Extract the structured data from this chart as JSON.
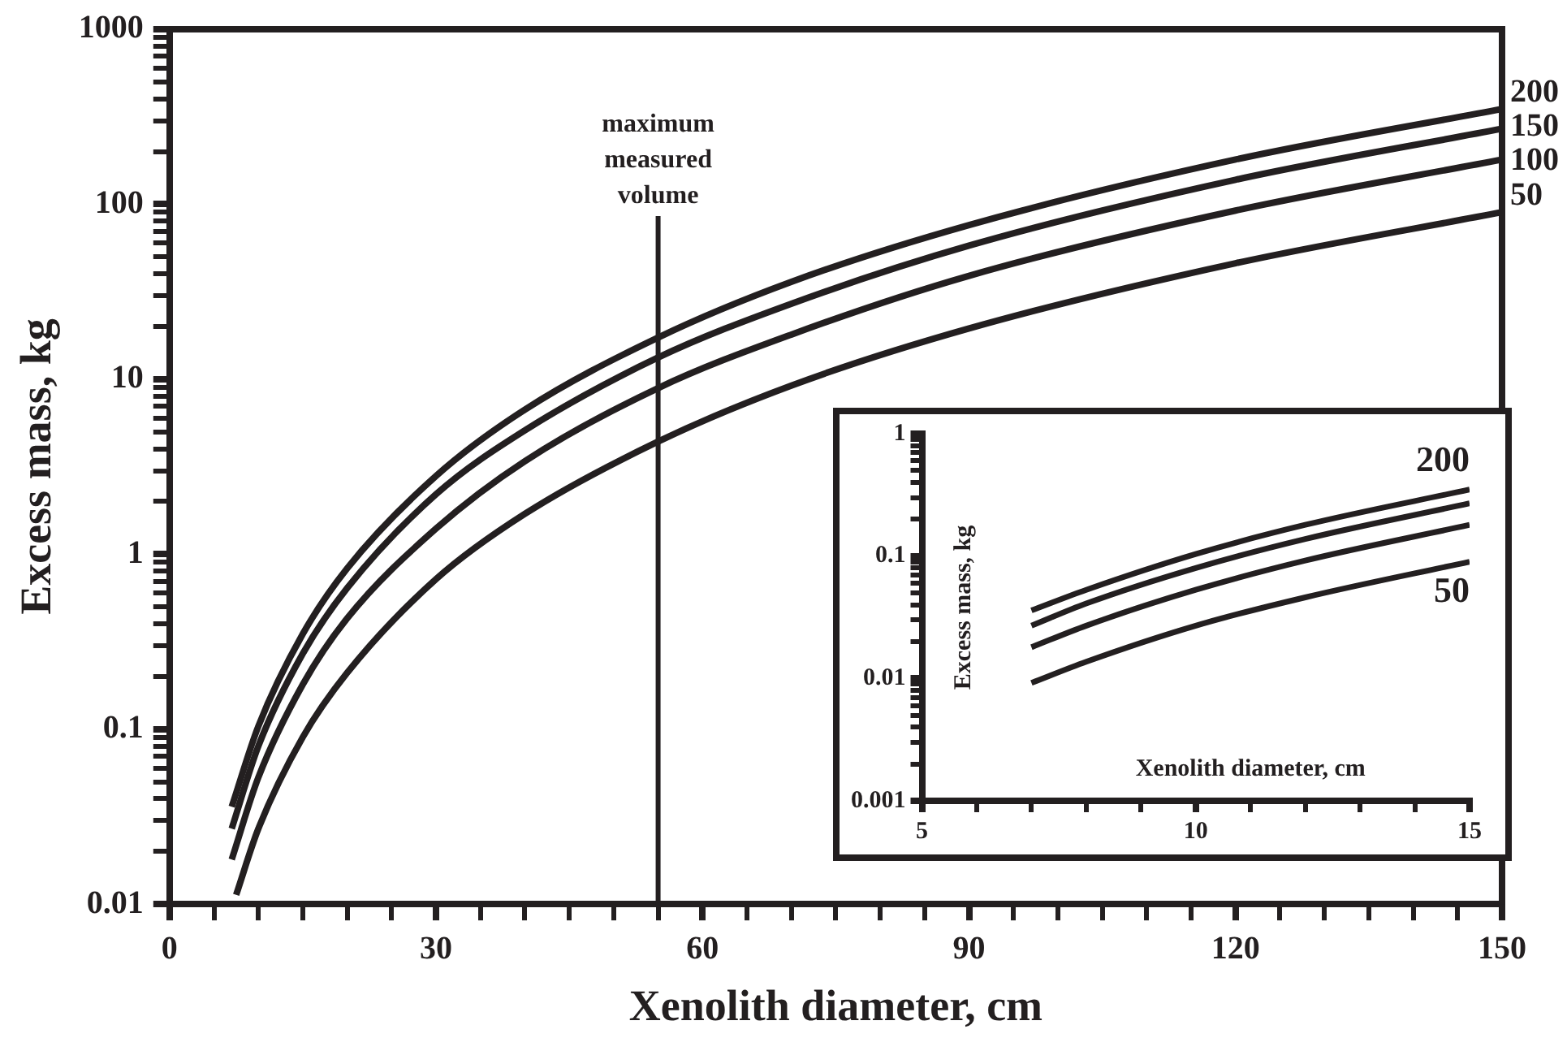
{
  "chart_data": [
    {
      "type": "line",
      "xlabel": "Xenolith diameter, cm",
      "ylabel": "Excess mass, kg",
      "log": "y",
      "grid": false,
      "legend": false,
      "marker": "none",
      "line_style": "solid",
      "xlim": [
        0,
        150
      ],
      "xticks": [
        0,
        {
          "value": 5,
          "label": null
        },
        {
          "value": 10,
          "label": null
        },
        {
          "value": 15,
          "label": null
        },
        {
          "value": 20,
          "label": null
        },
        {
          "value": 25,
          "label": null
        },
        30,
        {
          "value": 35,
          "label": null
        },
        {
          "value": 40,
          "label": null
        },
        {
          "value": 45,
          "label": null
        },
        {
          "value": 50,
          "label": null
        },
        {
          "value": 55,
          "label": null
        },
        60,
        {
          "value": 65,
          "label": null
        },
        {
          "value": 70,
          "label": null
        },
        {
          "value": 75,
          "label": null
        },
        {
          "value": 80,
          "label": null
        },
        {
          "value": 85,
          "label": null
        },
        90,
        {
          "value": 95,
          "label": null
        },
        {
          "value": 100,
          "label": null
        },
        {
          "value": 105,
          "label": null
        },
        {
          "value": 110,
          "label": null
        },
        {
          "value": 115,
          "label": null
        },
        120,
        {
          "value": 125,
          "label": null
        },
        {
          "value": 130,
          "label": null
        },
        {
          "value": 135,
          "label": null
        },
        {
          "value": 140,
          "label": null
        },
        {
          "value": 145,
          "label": null
        },
        150
      ],
      "ylim": [
        0.01,
        1000
      ],
      "yticks": [
        0.01,
        {
          "value": 0.02,
          "label": null
        },
        {
          "value": 0.03,
          "label": null
        },
        {
          "value": 0.04,
          "label": null
        },
        {
          "value": 0.05,
          "label": null
        },
        {
          "value": 0.06,
          "label": null
        },
        {
          "value": 0.07,
          "label": null
        },
        {
          "value": 0.08,
          "label": null
        },
        {
          "value": 0.09,
          "label": null
        },
        0.1,
        {
          "value": 0.2,
          "label": null
        },
        {
          "value": 0.3,
          "label": null
        },
        {
          "value": 0.4,
          "label": null
        },
        {
          "value": 0.5,
          "label": null
        },
        {
          "value": 0.6,
          "label": null
        },
        {
          "value": 0.7,
          "label": null
        },
        {
          "value": 0.8,
          "label": null
        },
        {
          "value": 0.9,
          "label": null
        },
        1,
        {
          "value": 2,
          "label": null
        },
        {
          "value": 3,
          "label": null
        },
        {
          "value": 4,
          "label": null
        },
        {
          "value": 5,
          "label": null
        },
        {
          "value": 6,
          "label": null
        },
        {
          "value": 7,
          "label": null
        },
        {
          "value": 8,
          "label": null
        },
        {
          "value": 9,
          "label": null
        },
        10,
        {
          "value": 20,
          "label": null
        },
        {
          "value": 30,
          "label": null
        },
        {
          "value": 40,
          "label": null
        },
        {
          "value": 50,
          "label": null
        },
        {
          "value": 60,
          "label": null
        },
        {
          "value": 70,
          "label": null
        },
        {
          "value": 80,
          "label": null
        },
        {
          "value": 90,
          "label": null
        },
        100,
        {
          "value": 200,
          "label": null
        },
        {
          "value": 300,
          "label": null
        },
        {
          "value": 400,
          "label": null
        },
        {
          "value": 500,
          "label": null
        },
        {
          "value": 600,
          "label": null
        },
        {
          "value": 700,
          "label": null
        },
        {
          "value": 800,
          "label": null
        },
        {
          "value": 900,
          "label": null
        },
        1000
      ],
      "ref_lines": [
        {
          "axis": "x",
          "value": 55,
          "label": "maximum measured volume",
          "color": "#231f20"
        }
      ],
      "series": [
        {
          "name": "200",
          "color": "#231f20",
          "x": [
            7,
            10,
            15,
            20,
            30,
            40,
            55,
            70,
            90,
            120,
            150
          ],
          "values": [
            0.036,
            0.104,
            0.35,
            0.83,
            2.8,
            6.7,
            17.3,
            36,
            76,
            180,
            350
          ]
        },
        {
          "name": "150",
          "color": "#231f20",
          "x": [
            7,
            10,
            15,
            20,
            30,
            40,
            55,
            70,
            90,
            120,
            150
          ],
          "values": [
            0.027,
            0.08,
            0.27,
            0.64,
            2.2,
            5.1,
            13.3,
            27,
            58,
            138,
            270
          ]
        },
        {
          "name": "100",
          "color": "#231f20",
          "x": [
            7,
            10,
            15,
            20,
            30,
            40,
            55,
            70,
            90,
            120,
            150
          ],
          "values": [
            0.018,
            0.053,
            0.18,
            0.43,
            1.4,
            3.4,
            8.9,
            18,
            39,
            92,
            180
          ]
        },
        {
          "name": "50",
          "color": "#231f20",
          "x": [
            7.5,
            10,
            15,
            20,
            30,
            40,
            55,
            70,
            90,
            120,
            150
          ],
          "values": [
            0.0113,
            0.027,
            0.09,
            0.21,
            0.72,
            1.7,
            4.4,
            9.2,
            19.5,
            46,
            90
          ]
        }
      ]
    },
    {
      "type": "line",
      "xlabel": "Xenolith diameter, cm",
      "ylabel": "Excess mass, kg",
      "log": "y",
      "grid": false,
      "legend": false,
      "marker": "none",
      "line_style": "solid",
      "xlim": [
        5,
        15
      ],
      "xticks": [
        5,
        {
          "value": 6,
          "label": null
        },
        {
          "value": 7,
          "label": null
        },
        {
          "value": 8,
          "label": null
        },
        {
          "value": 9,
          "label": null
        },
        10,
        {
          "value": 11,
          "label": null
        },
        {
          "value": 12,
          "label": null
        },
        {
          "value": 13,
          "label": null
        },
        {
          "value": 14,
          "label": null
        },
        15
      ],
      "ylim": [
        0.001,
        1
      ],
      "yticks": [
        0.001,
        {
          "value": 0.002,
          "label": null
        },
        {
          "value": 0.003,
          "label": null
        },
        {
          "value": 0.004,
          "label": null
        },
        {
          "value": 0.005,
          "label": null
        },
        {
          "value": 0.006,
          "label": null
        },
        {
          "value": 0.007,
          "label": null
        },
        {
          "value": 0.008,
          "label": null
        },
        {
          "value": 0.009,
          "label": null
        },
        0.01,
        {
          "value": 0.02,
          "label": null
        },
        {
          "value": 0.03,
          "label": null
        },
        {
          "value": 0.04,
          "label": null
        },
        {
          "value": 0.05,
          "label": null
        },
        {
          "value": 0.06,
          "label": null
        },
        {
          "value": 0.07,
          "label": null
        },
        {
          "value": 0.08,
          "label": null
        },
        {
          "value": 0.09,
          "label": null
        },
        0.1,
        {
          "value": 0.2,
          "label": null
        },
        {
          "value": 0.3,
          "label": null
        },
        {
          "value": 0.4,
          "label": null
        },
        {
          "value": 0.5,
          "label": null
        },
        {
          "value": 0.6,
          "label": null
        },
        {
          "value": 0.7,
          "label": null
        },
        {
          "value": 0.8,
          "label": null
        },
        {
          "value": 0.9,
          "label": null
        },
        1
      ],
      "series": [
        {
          "name": "200",
          "color": "#231f20",
          "x": [
            7,
            8,
            10,
            12,
            15
          ],
          "values": [
            0.036,
            0.053,
            0.104,
            0.18,
            0.35
          ]
        },
        {
          "color": "#231f20",
          "x": [
            7,
            8,
            10,
            12,
            15
          ],
          "values": [
            0.027,
            0.041,
            0.08,
            0.138,
            0.27
          ]
        },
        {
          "color": "#231f20",
          "x": [
            7,
            8,
            10,
            12,
            15
          ],
          "values": [
            0.018,
            0.027,
            0.053,
            0.092,
            0.18
          ]
        },
        {
          "name": "50",
          "color": "#231f20",
          "x": [
            7,
            8,
            10,
            12,
            15
          ],
          "values": [
            0.0092,
            0.0137,
            0.027,
            0.046,
            0.09
          ]
        }
      ]
    }
  ]
}
